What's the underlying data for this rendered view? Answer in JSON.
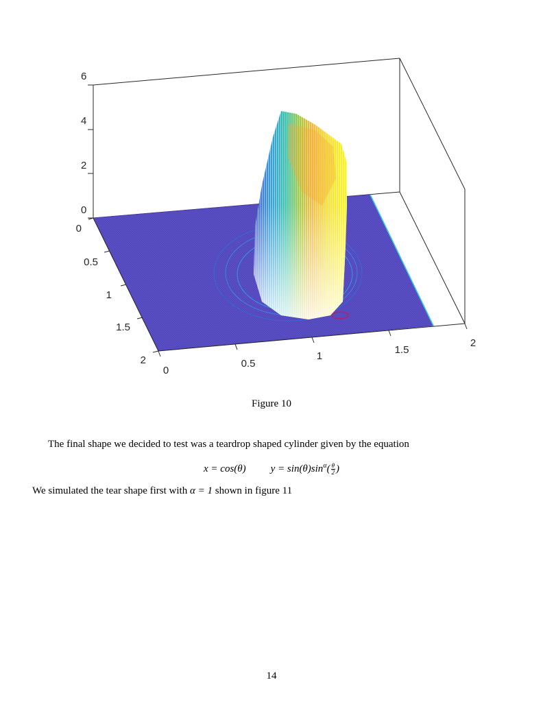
{
  "figure": {
    "chart_data": {
      "type": "surface",
      "x_ticks": [
        "0",
        "0.5",
        "1",
        "1.5",
        "2"
      ],
      "y_ticks": [
        "0",
        "0.5",
        "1",
        "1.5",
        "2"
      ],
      "z_ticks": [
        "0",
        "2",
        "4",
        "6"
      ],
      "x_range": [
        0,
        2
      ],
      "y_range": [
        0,
        2
      ],
      "z_range": [
        0,
        6
      ],
      "base_level": 0,
      "peak_level": 5.5,
      "colormap": [
        "#3d26a8",
        "#2f9bde",
        "#2fbfa0",
        "#a6c739",
        "#f9e01e",
        "#f9fb0e"
      ],
      "floor_color": "#5b4fc4",
      "grid": true
    }
  },
  "caption": "Figure 10",
  "paragraph1": "The final shape we decided to test was a teardrop shaped cylinder given by the equation",
  "equation": {
    "left": "x = cos(θ)",
    "right_main": "y = sin(θ)sin",
    "right_sup": "α",
    "frac_open": "(",
    "frac_num": "θ",
    "frac_den": "2",
    "frac_close": ")"
  },
  "paragraph2": {
    "before": "We simulated the tear shape first with ",
    "math": "α = 1",
    "after": " shown in figure 11"
  },
  "page_number": "14"
}
